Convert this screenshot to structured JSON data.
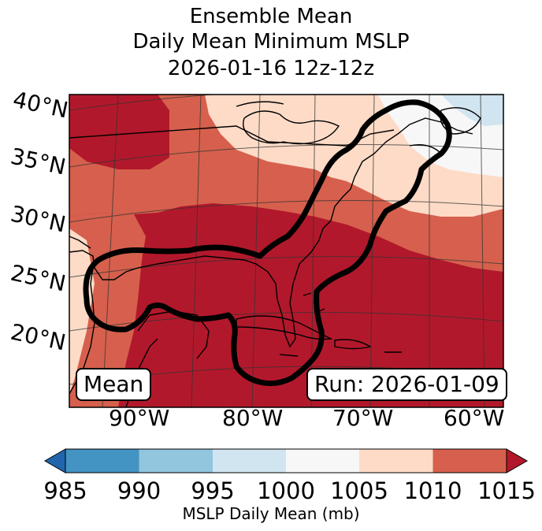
{
  "title": {
    "line1": "Ensemble Mean",
    "line2": "Daily Mean Minimum MSLP",
    "line3": "2026-01-16 12z-12z"
  },
  "map": {
    "lat_labels": [
      "40°N",
      "35°N",
      "30°N",
      "25°N",
      "20°N"
    ],
    "lon_labels": [
      "90°W",
      "80°W",
      "70°W",
      "60°W"
    ],
    "mean_box": "Mean",
    "run_box": "Run: 2026-01-09"
  },
  "colorbar": {
    "ticks": [
      "985",
      "990",
      "995",
      "1000",
      "1005",
      "1010",
      "1015"
    ],
    "label": "MSLP Daily Mean (mb)",
    "colors": {
      "below": "#2166ac",
      "985-990": "#4393c3",
      "990-995": "#92c5de",
      "995-1000": "#d1e5f0",
      "1000-1005": "#f7f7f7",
      "1005-1010": "#fddbc7",
      "1010-1015": "#d6604d",
      "above": "#b2182b"
    }
  }
}
